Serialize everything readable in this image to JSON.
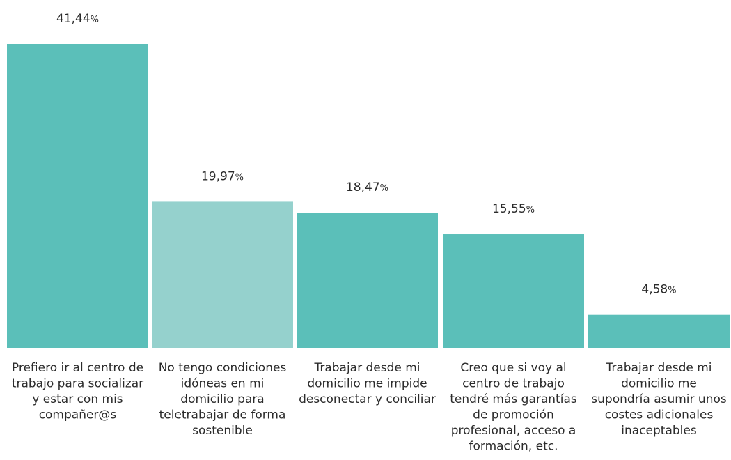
{
  "chart_data": {
    "type": "bar",
    "title": "",
    "xlabel": "",
    "ylabel": "",
    "ylim": [
      0,
      41.44
    ],
    "grid": false,
    "legend": "none",
    "unit": "%",
    "categories": [
      [
        "Prefiero ir al centro de",
        "trabajo para socializar",
        "y estar con mis",
        "compañer@s"
      ],
      [
        "No tengo condiciones",
        "idóneas en mi",
        "domicilio para",
        "teletrabajar de forma",
        "sostenible"
      ],
      [
        "Trabajar desde mi",
        "domicilio me impide",
        "desconectar y conciliar"
      ],
      [
        "Creo que si voy al",
        "centro de trabajo",
        "tendré más garantías",
        "de promoción",
        "profesional, acceso a",
        "formación, etc."
      ],
      [
        "Trabajar desde mi",
        "domicilio me",
        "supondría asumir unos",
        "costes adicionales",
        "inaceptables"
      ]
    ],
    "values": [
      41.44,
      19.97,
      18.47,
      15.55,
      4.58
    ],
    "value_labels": [
      "41,44",
      "19,97",
      "18,47",
      "15,55",
      "4,58"
    ],
    "colors": [
      "#5bbfb9",
      "#95d1cd",
      "#5bbfb9",
      "#5bbfb9",
      "#5bbfb9"
    ]
  }
}
